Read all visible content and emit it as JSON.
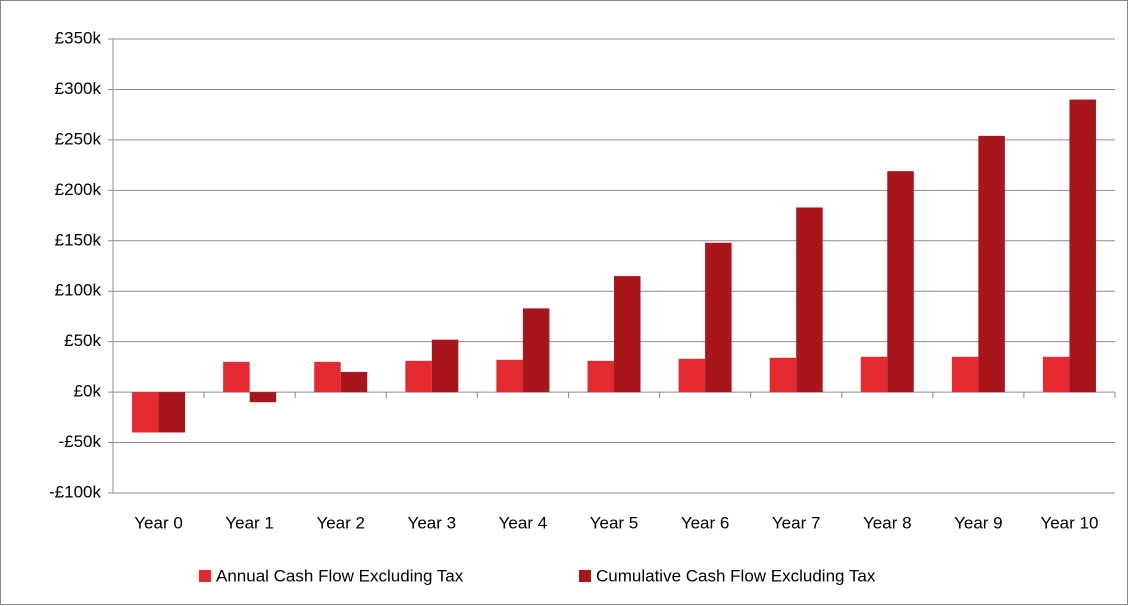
{
  "chart_data": {
    "type": "bar",
    "categories": [
      "Year 0",
      "Year 1",
      "Year 2",
      "Year 3",
      "Year 4",
      "Year 5",
      "Year 6",
      "Year 7",
      "Year 8",
      "Year 9",
      "Year 10"
    ],
    "series": [
      {
        "name": "Annual Cash Flow Excluding Tax",
        "color": "#e42a30",
        "values": [
          -40,
          30,
          30,
          31,
          32,
          31,
          33,
          34,
          35,
          35,
          35
        ]
      },
      {
        "name": "Cumulative Cash Flow Excluding Tax",
        "color": "#a8151b",
        "values": [
          -40,
          -10,
          20,
          52,
          83,
          115,
          148,
          183,
          219,
          254,
          290
        ]
      }
    ],
    "ylim": [
      -100,
      350
    ],
    "yticks": [
      {
        "value": -100,
        "label": "-£100k"
      },
      {
        "value": -50,
        "label": "-£50k"
      },
      {
        "value": 0,
        "label": "£0k"
      },
      {
        "value": 50,
        "label": "£50k"
      },
      {
        "value": 100,
        "label": "£100k"
      },
      {
        "value": 150,
        "label": "£150k"
      },
      {
        "value": 200,
        "label": "£200k"
      },
      {
        "value": 250,
        "label": "£250k"
      },
      {
        "value": 300,
        "label": "£300k"
      },
      {
        "value": 350,
        "label": "£350k"
      }
    ],
    "grid": true,
    "legend": "bottom"
  }
}
